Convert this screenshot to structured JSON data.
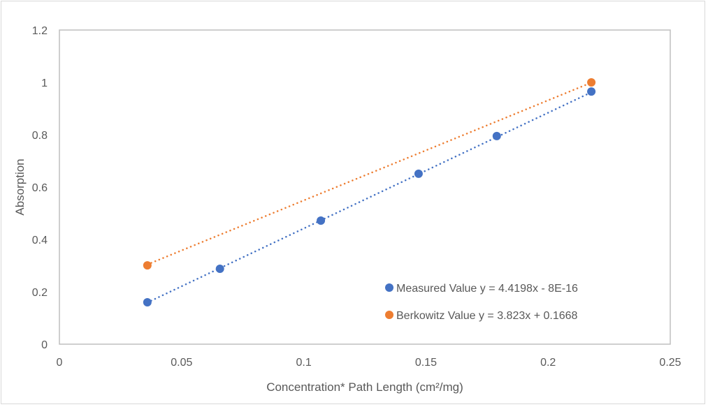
{
  "chart_data": {
    "type": "scatter",
    "title": "",
    "xlabel": "Concentration* Path Length (cm²/mg)",
    "ylabel": "Absorption",
    "xlim": [
      0,
      0.25
    ],
    "ylim": [
      0,
      1.2
    ],
    "xticks": [
      "0",
      "0.05",
      "0.1",
      "0.15",
      "0.2",
      "0.25"
    ],
    "xtick_values": [
      0,
      0.05,
      0.1,
      0.15,
      0.2,
      0.25
    ],
    "yticks": [
      "0",
      "0.2",
      "0.4",
      "0.6",
      "0.8",
      "1",
      "1.2"
    ],
    "ytick_values": [
      0,
      0.2,
      0.4,
      0.6,
      0.8,
      1,
      1.2
    ],
    "grid": false,
    "legend_position": "bottom-right inside",
    "series": [
      {
        "name": "Measured Value",
        "equation": "y = 4.4198x - 8E-16",
        "color": "#4472C4",
        "trendline": {
          "slope": 4.4198,
          "intercept": 0
        },
        "x": [
          0.036,
          0.0657,
          0.107,
          0.147,
          0.179,
          0.2177
        ],
        "y": [
          0.16,
          0.288,
          0.472,
          0.651,
          0.795,
          0.965
        ]
      },
      {
        "name": "Berkowitz Value",
        "equation": "y = 3.823x + 0.1668",
        "color": "#ED7D31",
        "trendline": {
          "slope": 3.823,
          "intercept": 0.1668
        },
        "x": [
          0.036,
          0.2177
        ],
        "y": [
          0.301,
          1.0
        ]
      }
    ]
  }
}
